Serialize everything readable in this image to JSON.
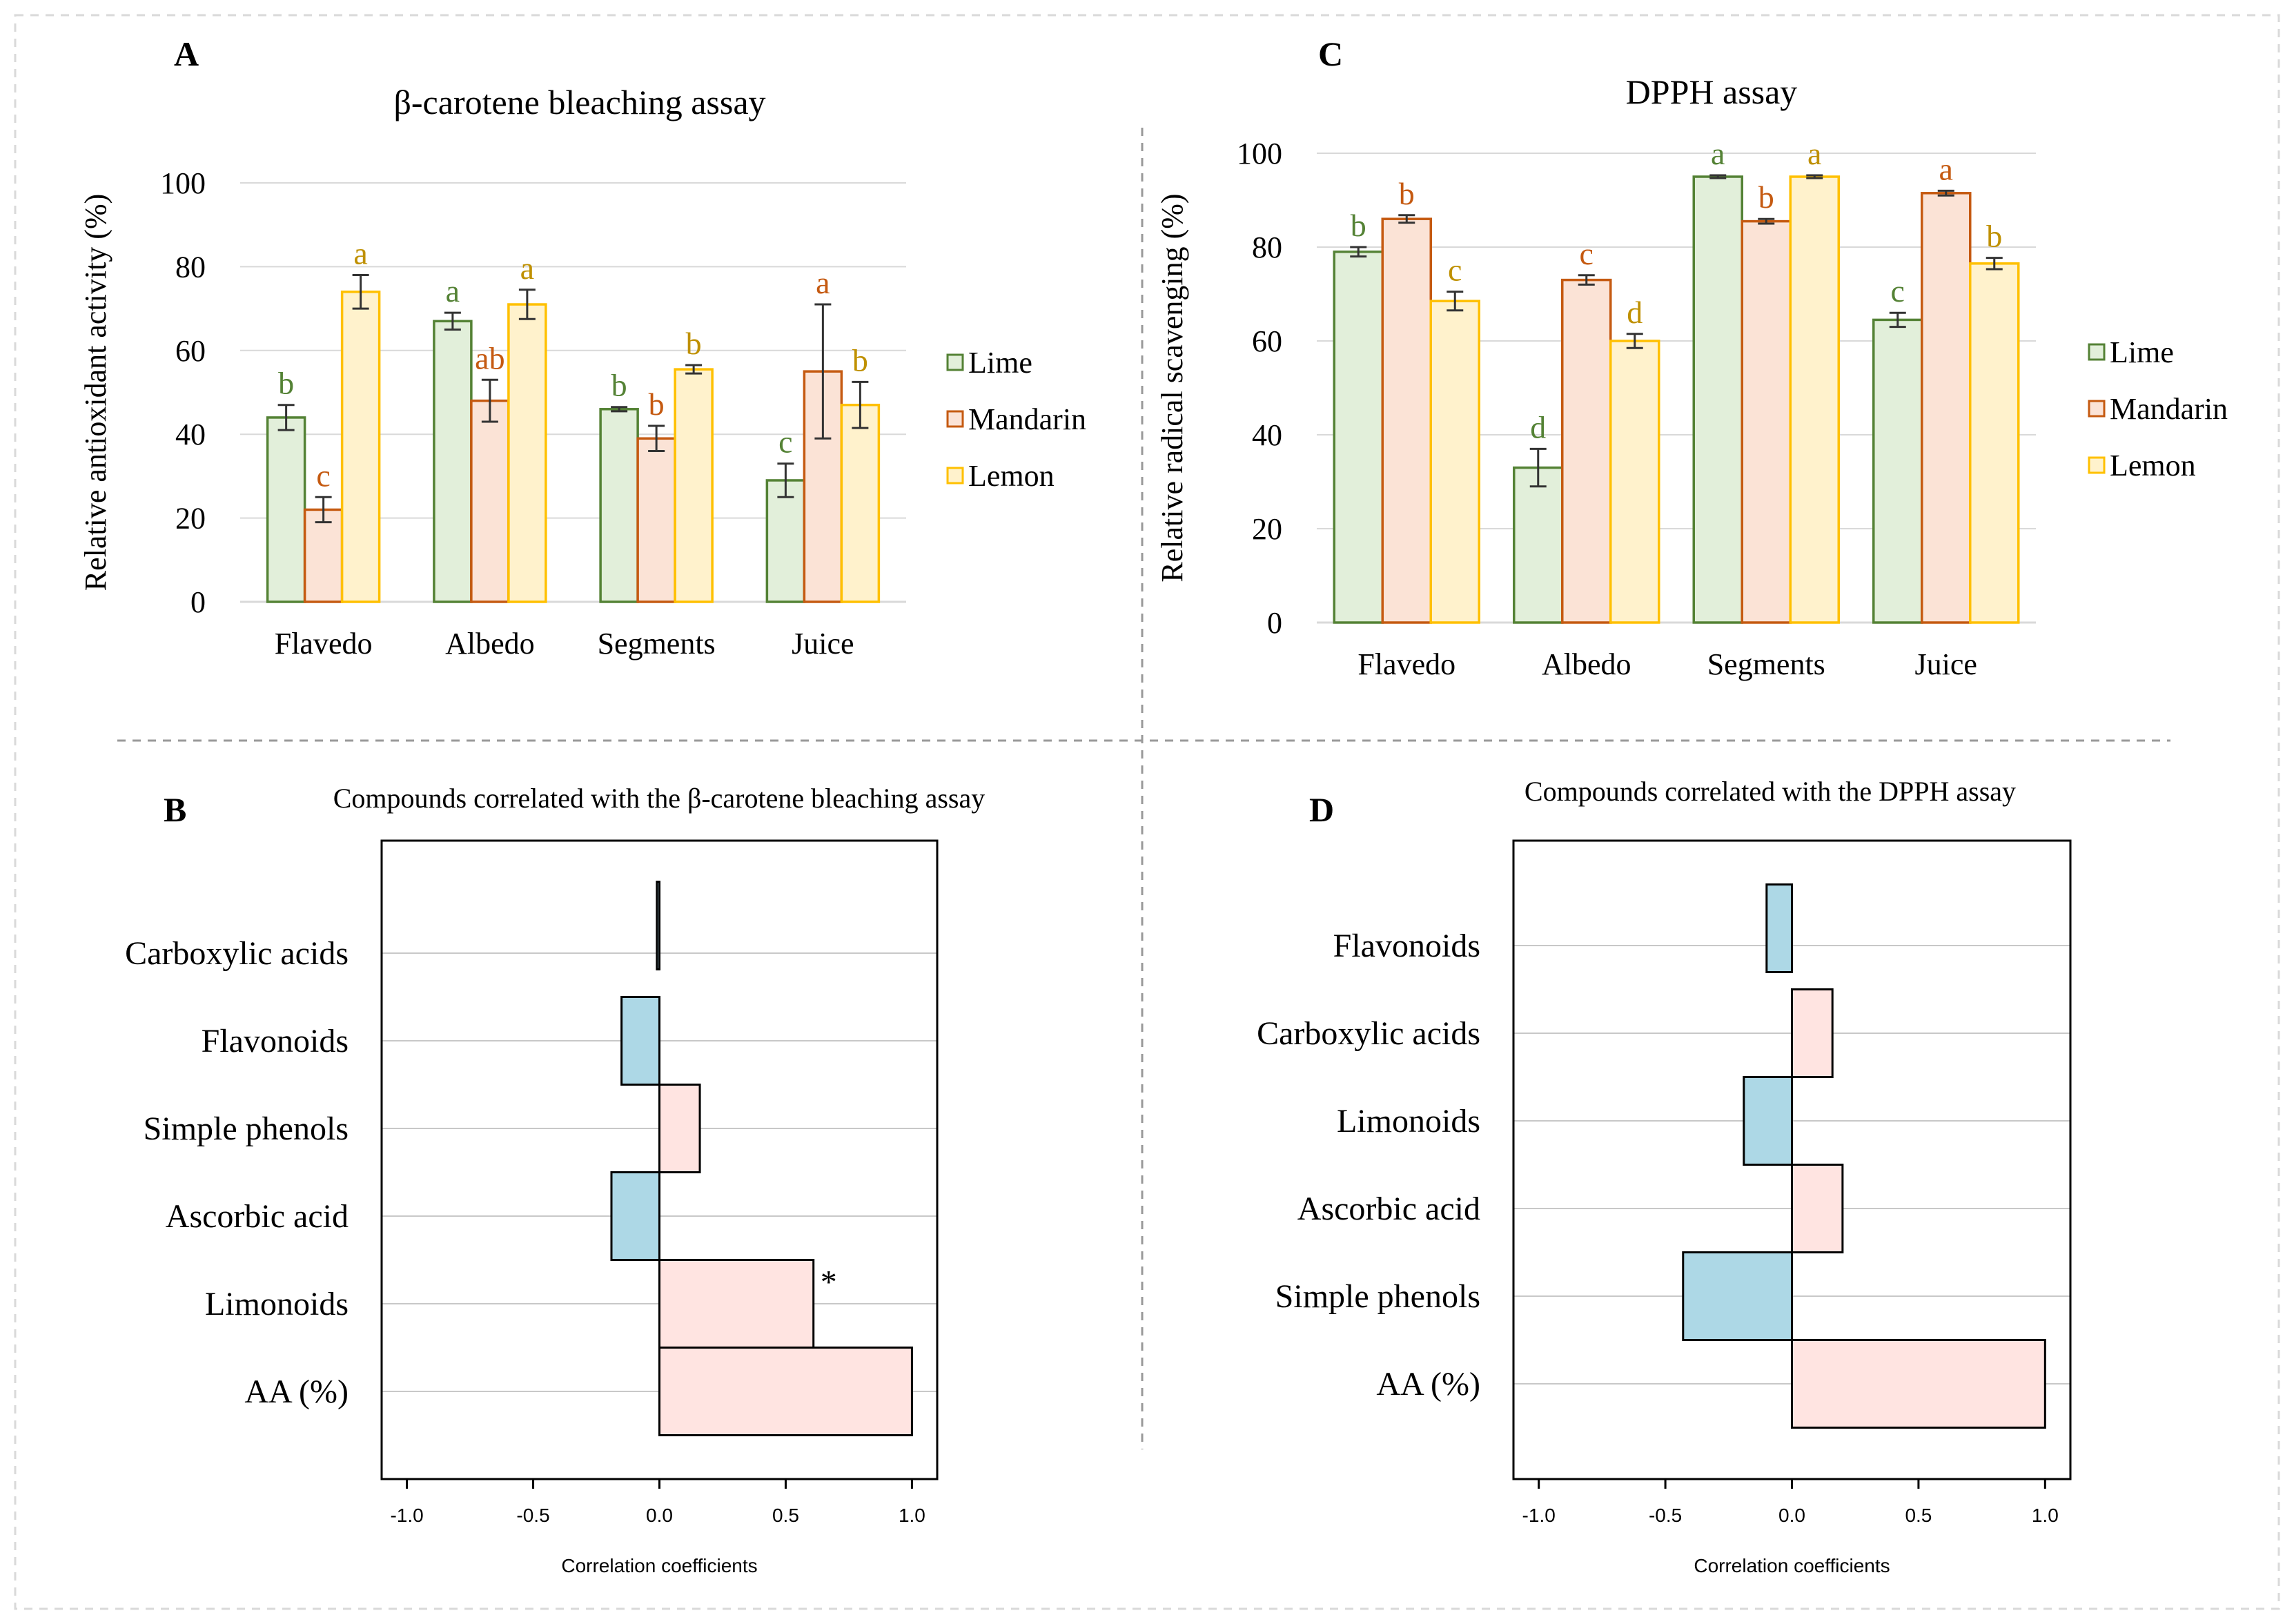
{
  "colors": {
    "lime_fill": "#e2efda",
    "lime_stroke": "#548235",
    "lime_letter": "#548235",
    "mandarin_fill": "#fbe3d6",
    "mandarin_stroke": "#c55a11",
    "mandarin_letter": "#c55a11",
    "lemon_fill": "#fff2cc",
    "lemon_stroke": "#ffc000",
    "lemon_letter": "#bf9000",
    "neg_fill": "#add8e6",
    "pos_fill": "#ffe4e1"
  },
  "chart_data": [
    {
      "panel": "A",
      "type": "bar",
      "title": "β-carotene bleaching assay",
      "ylabel": "Relative antioxidant activity (%)",
      "xlabel": "",
      "ylim": [
        0,
        100
      ],
      "yticks": [
        0,
        20,
        40,
        60,
        80,
        100
      ],
      "categories": [
        "Flavedo",
        "Albedo",
        "Segments",
        "Juice"
      ],
      "legend_position": "right",
      "series": [
        {
          "name": "Lime",
          "key": "lime",
          "values": [
            44,
            67,
            46,
            29
          ],
          "errors": [
            3,
            2,
            0.5,
            4
          ],
          "letters": [
            "b",
            "a",
            "b",
            "c"
          ]
        },
        {
          "name": "Mandarin",
          "key": "mandarin",
          "values": [
            22,
            48,
            39,
            55
          ],
          "errors": [
            3,
            5,
            3,
            16
          ],
          "letters": [
            "c",
            "ab",
            "b",
            "a"
          ]
        },
        {
          "name": "Lemon",
          "key": "lemon",
          "values": [
            74,
            71,
            55.5,
            47
          ],
          "errors": [
            4,
            3.5,
            1,
            5.5
          ],
          "letters": [
            "a",
            "a",
            "b",
            "b"
          ]
        }
      ]
    },
    {
      "panel": "C",
      "type": "bar",
      "title": "DPPH assay",
      "ylabel": "Relative radical scavenging (%)",
      "xlabel": "",
      "ylim": [
        0,
        100
      ],
      "yticks": [
        0,
        20,
        40,
        60,
        80,
        100
      ],
      "categories": [
        "Flavedo",
        "Albedo",
        "Segments",
        "Juice"
      ],
      "legend_position": "right",
      "series": [
        {
          "name": "Lime",
          "key": "lime",
          "values": [
            79,
            33,
            95,
            64.5
          ],
          "errors": [
            1,
            4,
            0.3,
            1.5
          ],
          "letters": [
            "b",
            "d",
            "a",
            "c"
          ]
        },
        {
          "name": "Mandarin",
          "key": "mandarin",
          "values": [
            86,
            73,
            85.5,
            91.5
          ],
          "errors": [
            0.8,
            1,
            0.5,
            0.5
          ],
          "letters": [
            "b",
            "c",
            "b",
            "a"
          ]
        },
        {
          "name": "Lemon",
          "key": "lemon",
          "values": [
            68.5,
            60,
            95,
            76.5
          ],
          "errors": [
            2,
            1.5,
            0.3,
            1.2
          ],
          "letters": [
            "c",
            "d",
            "a",
            "b"
          ]
        }
      ]
    },
    {
      "panel": "B",
      "type": "bar",
      "orientation": "horizontal",
      "title": "Compounds correlated with the β-carotene bleaching assay",
      "xlabel": "Correlation coefficients",
      "xlim": [
        -1.1,
        1.1
      ],
      "xticks": [
        -1.0,
        -0.5,
        0.0,
        0.5,
        1.0
      ],
      "xtick_labels": [
        "-1.0",
        "-0.5",
        "0.0",
        "0.5",
        "1.0"
      ],
      "categories": [
        "Carboxylic acids",
        "Flavonoids",
        "Simple phenols",
        "Ascorbic acid",
        "Limonoids",
        "AA (%)"
      ],
      "values": [
        -0.01,
        -0.15,
        0.16,
        -0.19,
        0.61,
        1.0
      ],
      "marks": [
        "",
        "",
        "",
        "",
        "*",
        ""
      ]
    },
    {
      "panel": "D",
      "type": "bar",
      "orientation": "horizontal",
      "title": "Compounds correlated with the DPPH assay",
      "xlabel": "Correlation coefficients",
      "xlim": [
        -1.1,
        1.1
      ],
      "xticks": [
        -1.0,
        -0.5,
        0.0,
        0.5,
        1.0
      ],
      "xtick_labels": [
        "-1.0",
        "-0.5",
        "0.0",
        "0.5",
        "1.0"
      ],
      "categories": [
        "Flavonoids",
        "Carboxylic acids",
        "Limonoids",
        "Ascorbic acid",
        "Simple phenols",
        "AA (%)"
      ],
      "values": [
        -0.1,
        0.16,
        -0.19,
        0.2,
        -0.43,
        1.0
      ],
      "marks": [
        "",
        "",
        "",
        "",
        "",
        ""
      ]
    }
  ]
}
